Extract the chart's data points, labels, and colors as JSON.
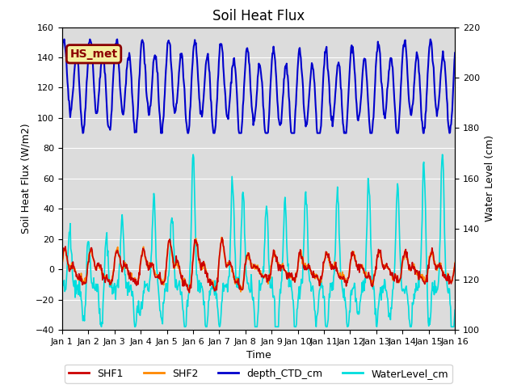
{
  "title": "Soil Heat Flux",
  "xlabel": "Time",
  "ylabel_left": "Soil Heat Flux (W/m2)",
  "ylabel_right": "Water Level (cm)",
  "ylim_left": [
    -40,
    160
  ],
  "ylim_right": [
    100,
    220
  ],
  "annotation": "HS_met",
  "annotation_bg": "#f5f0a0",
  "annotation_border": "#8B0000",
  "bg_color": "#dcdcdc",
  "fig_bg": "#ffffff",
  "legend_items": [
    {
      "label": "SHF1",
      "color": "#cc0000",
      "lw": 1.2
    },
    {
      "label": "SHF2",
      "color": "#ff8800",
      "lw": 1.2
    },
    {
      "label": "depth_CTD_cm",
      "color": "#0000cc",
      "lw": 1.5
    },
    {
      "label": "WaterLevel_cm",
      "color": "#00dddd",
      "lw": 1.2
    }
  ],
  "n_days": 15,
  "seed": 42,
  "title_fontsize": 12,
  "axis_fontsize": 9,
  "tick_fontsize": 8,
  "legend_fontsize": 9
}
